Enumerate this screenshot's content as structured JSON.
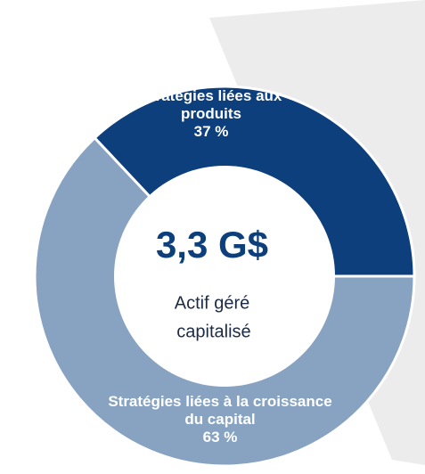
{
  "chart_data": {
    "type": "donut",
    "categories": [
      "Stratégies liées aux produits",
      "Stratégies liées à la croissance du capital"
    ],
    "values": [
      37,
      63
    ],
    "value_labels": [
      "37 %",
      "63 %"
    ],
    "colors": [
      "#0d3f7c",
      "#87a3c1"
    ],
    "center_value": "3,3 G$",
    "center_label": [
      "Actif géré",
      "capitalisé"
    ]
  }
}
